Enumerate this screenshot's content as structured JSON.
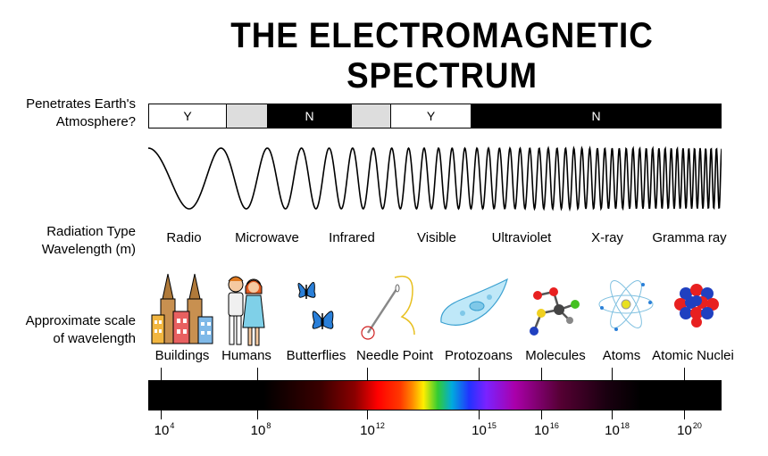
{
  "title": "THE ELECTROMAGNETIC SPECTRUM",
  "labels": {
    "penetrates_line1": "Penetrates Earth's",
    "penetrates_line2": "Atmosphere?",
    "radiation_line1": "Radiation Type",
    "radiation_line2": "Wavelength (m)",
    "scale_line1": "Approximate scale",
    "scale_line2": "of wavelength"
  },
  "atmosphere": [
    {
      "label": "Y",
      "color": "#ffffff",
      "text_color": "#000000"
    },
    {
      "label": "",
      "color": "#dddddd",
      "text_color": "#000000"
    },
    {
      "label": "N",
      "color": "#000000",
      "text_color": "#ffffff"
    },
    {
      "label": "",
      "color": "#dddddd",
      "text_color": "#000000"
    },
    {
      "label": "Y",
      "color": "#ffffff",
      "text_color": "#000000"
    },
    {
      "label": "N",
      "color": "#000000",
      "text_color": "#ffffff"
    }
  ],
  "radiation_types": [
    "Radio",
    "Microwave",
    "Infrared",
    "Visible",
    "Ultraviolet",
    "X-ray",
    "Gramma ray"
  ],
  "scale_objects": [
    "Buildings",
    "Humans",
    "Butterflies",
    "Needle Point",
    "Protozoans",
    "Molecules",
    "Atoms",
    "Atomic Nuclei"
  ],
  "ticks": [
    {
      "base": "10",
      "exp": "4"
    },
    {
      "base": "10",
      "exp": "8"
    },
    {
      "base": "10",
      "exp": "12"
    },
    {
      "base": "10",
      "exp": "15"
    },
    {
      "base": "10",
      "exp": "16"
    },
    {
      "base": "10",
      "exp": "18"
    },
    {
      "base": "10",
      "exp": "20"
    }
  ]
}
